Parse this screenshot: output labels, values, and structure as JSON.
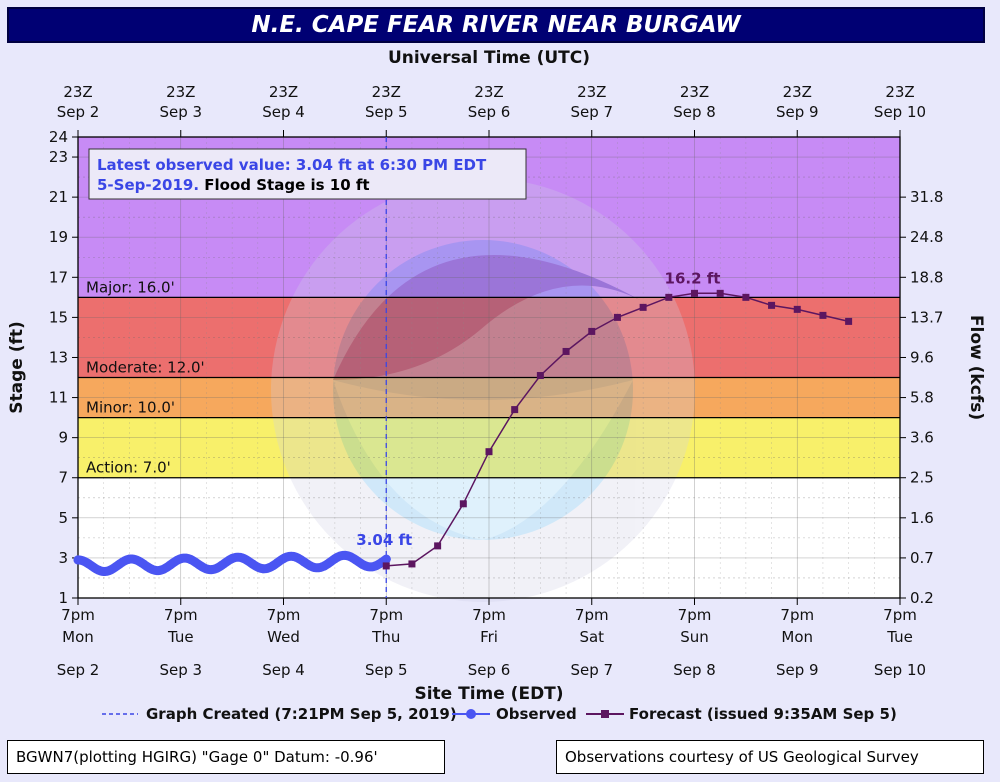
{
  "title": "N.E. CAPE FEAR RIVER NEAR BURGAW",
  "chart_data": {
    "type": "line",
    "top_axis_label": "Universal Time (UTC)",
    "top_ticks": [
      {
        "hour": "23Z",
        "date": "Sep 2"
      },
      {
        "hour": "23Z",
        "date": "Sep 3"
      },
      {
        "hour": "23Z",
        "date": "Sep 4"
      },
      {
        "hour": "23Z",
        "date": "Sep 5"
      },
      {
        "hour": "23Z",
        "date": "Sep 6"
      },
      {
        "hour": "23Z",
        "date": "Sep 7"
      },
      {
        "hour": "23Z",
        "date": "Sep 8"
      },
      {
        "hour": "23Z",
        "date": "Sep 9"
      },
      {
        "hour": "23Z",
        "date": "Sep 10"
      }
    ],
    "xlabel": "Site Time (EDT)",
    "bottom_ticks": [
      {
        "time": "7pm",
        "day": "Mon",
        "date": "Sep 2"
      },
      {
        "time": "7pm",
        "day": "Tue",
        "date": "Sep 3"
      },
      {
        "time": "7pm",
        "day": "Wed",
        "date": "Sep 4"
      },
      {
        "time": "7pm",
        "day": "Thu",
        "date": "Sep 5"
      },
      {
        "time": "7pm",
        "day": "Fri",
        "date": "Sep 6"
      },
      {
        "time": "7pm",
        "day": "Sat",
        "date": "Sep 7"
      },
      {
        "time": "7pm",
        "day": "Sun",
        "date": "Sep 8"
      },
      {
        "time": "7pm",
        "day": "Mon",
        "date": "Sep 9"
      },
      {
        "time": "7pm",
        "day": "Tue",
        "date": "Sep 10"
      }
    ],
    "ylabel": "Stage (ft)",
    "ylim": [
      1,
      24
    ],
    "yticks": [
      1,
      3,
      5,
      7,
      9,
      11,
      13,
      15,
      17,
      19,
      21,
      23,
      24
    ],
    "y2label": "Flow (kcfs)",
    "y2ticks": [
      {
        "stage": 1,
        "label": "0.2"
      },
      {
        "stage": 3,
        "label": "0.7"
      },
      {
        "stage": 5,
        "label": "1.6"
      },
      {
        "stage": 7,
        "label": "2.5"
      },
      {
        "stage": 9,
        "label": "3.6"
      },
      {
        "stage": 11,
        "label": "5.8"
      },
      {
        "stage": 13,
        "label": "9.6"
      },
      {
        "stage": 15,
        "label": "13.7"
      },
      {
        "stage": 17,
        "label": "18.8"
      },
      {
        "stage": 19,
        "label": "24.8"
      },
      {
        "stage": 21,
        "label": "31.8"
      }
    ],
    "flood_categories": [
      {
        "name": "Major: 16.0'",
        "from": 16,
        "to": 24,
        "color": "#c78bf5"
      },
      {
        "name": "Moderate: 12.0'",
        "from": 12,
        "to": 16,
        "color": "#ec6f6e"
      },
      {
        "name": "Minor: 10.0'",
        "from": 10,
        "to": 12,
        "color": "#f6a85d"
      },
      {
        "name": "Action: 7.0'",
        "from": 7,
        "to": 10,
        "color": "#f8f06a"
      }
    ],
    "graph_created_day": 3.0,
    "annotation": {
      "line1": "Latest observed value: 3.04 ft at 6:30 PM EDT",
      "line2a": "5-Sep-2019.",
      "line2b": "Flood Stage is 10 ft"
    },
    "observed_label": "3.04 ft",
    "forecast_peak_label": "16.2 ft",
    "observed": {
      "name": "Observed",
      "start_day": 0,
      "end_day": 3.0,
      "mean": 2.6,
      "amplitude": 0.3,
      "cycles_per_day": 1.93,
      "end_value": 3.04
    },
    "forecast": {
      "name": "Forecast (issued 9:35AM Sep 5)",
      "x": [
        3.0,
        3.25,
        3.5,
        3.75,
        4.0,
        4.25,
        4.5,
        4.75,
        5.0,
        5.25,
        5.5,
        5.75,
        6.0,
        6.25,
        6.5,
        6.75,
        7.0,
        7.25,
        7.5
      ],
      "y": [
        2.6,
        2.7,
        3.6,
        5.7,
        8.3,
        10.4,
        12.1,
        13.3,
        14.3,
        15.0,
        15.5,
        16.0,
        16.2,
        16.2,
        16.0,
        15.6,
        15.4,
        15.1,
        14.8
      ]
    },
    "legend": {
      "graph_created": "Graph Created (7:21PM Sep 5, 2019)",
      "observed": "Observed",
      "forecast": "Forecast (issued 9:35AM Sep 5)"
    },
    "colors": {
      "observed": "#4a55f2",
      "forecast": "#5c1660",
      "created_line": "#3a46e6",
      "annotation_text": "#3a46e6"
    }
  },
  "footer": {
    "left": "BGWN7(plotting HGIRG) \"Gage 0\" Datum: -0.96'",
    "right": "Observations courtesy of US Geological Survey"
  }
}
